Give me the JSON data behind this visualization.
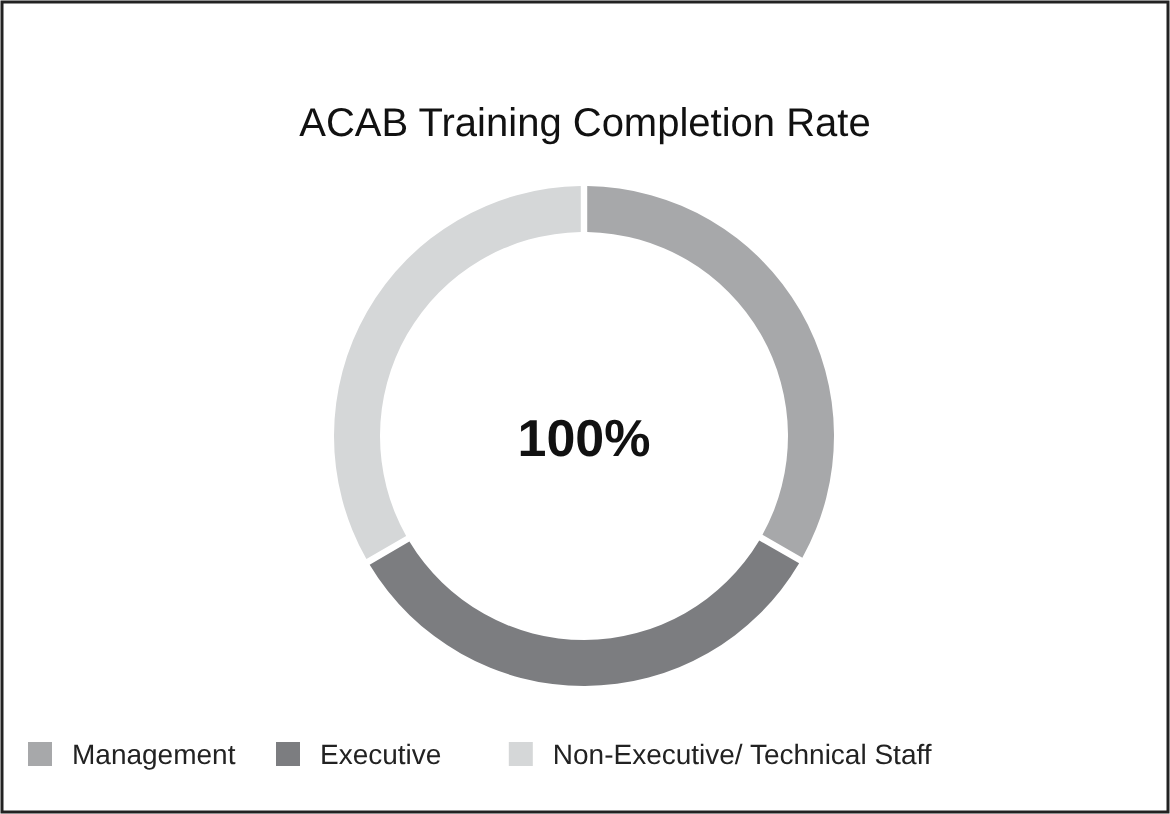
{
  "chart_data": {
    "type": "donut",
    "title": "ACAB Training Completion Rate",
    "categories": [
      "Management",
      "Executive",
      "Non-Executive/ Technical Staff"
    ],
    "values": [
      33.3,
      33.3,
      33.4
    ],
    "colors": [
      "#a7a8aa",
      "#7c7d80",
      "#d5d7d8"
    ],
    "annotations": [
      "100%"
    ],
    "legend": "bottom"
  }
}
